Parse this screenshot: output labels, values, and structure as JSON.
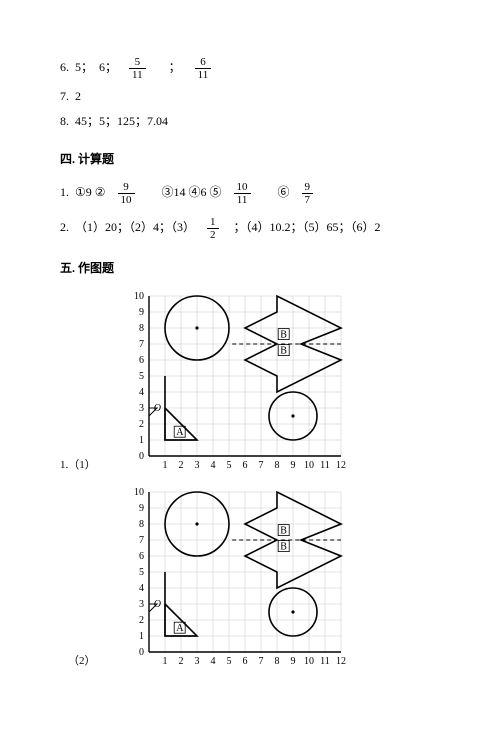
{
  "item6": {
    "prefix": "6.",
    "vals": [
      "5；",
      "6；"
    ],
    "frac1": {
      "n": "5",
      "d": "11"
    },
    "semi": "；",
    "frac2": {
      "n": "6",
      "d": "11"
    }
  },
  "item7": {
    "prefix": "7.",
    "val": "2"
  },
  "item8": {
    "prefix": "8.",
    "vals": "45；5；125；7.04"
  },
  "section4": "四. 计算题",
  "q1": {
    "prefix": "1.",
    "p1": "①9 ②",
    "frac1": {
      "n": "9",
      "d": "10"
    },
    "p2": "　③14 ④6 ⑤",
    "frac2": {
      "n": "10",
      "d": "11"
    },
    "p3": "　⑥",
    "frac3": {
      "n": "9",
      "d": "7"
    }
  },
  "q2": {
    "prefix": "2.",
    "p1": "（1）20；（2）4；（3）",
    "frac1": {
      "n": "1",
      "d": "2"
    },
    "p2": "；（4）10.2；（5）65；（6）2"
  },
  "section5": "五. 作图题",
  "fig1label": "1.（1）",
  "fig2label": "（2）",
  "chart": {
    "grid_color": "#cccccc",
    "axis_color": "#000000",
    "stroke_color": "#000000",
    "cell": 16,
    "cols": 12,
    "rows": 10,
    "x_ticks": [
      "1",
      "2",
      "3",
      "4",
      "5",
      "6",
      "7",
      "8",
      "9",
      "10",
      "11",
      "12"
    ],
    "y_ticks": [
      "0",
      "1",
      "2",
      "3",
      "4",
      "5",
      "6",
      "7",
      "8",
      "9",
      "10"
    ],
    "font_size": 10,
    "circle1": {
      "cx_units": 3,
      "cy_units": 8,
      "r_units": 2
    },
    "circle2": {
      "cx_units": 9,
      "cy_units": 2.5,
      "r_units": 1.5
    },
    "shapeA_units": [
      [
        1,
        5
      ],
      [
        1,
        1
      ],
      [
        3,
        1
      ],
      [
        1,
        3
      ]
    ],
    "shapeA_inner_units": [
      [
        1,
        3
      ],
      [
        1,
        1
      ],
      [
        3,
        1
      ]
    ],
    "label_A": "A",
    "label_A_pos": [
      1.7,
      1.3
    ],
    "label_O": "O",
    "label_O_pos": [
      0.3,
      2.8
    ],
    "star_units": [
      [
        6,
        8
      ],
      [
        8,
        9
      ],
      [
        8,
        10
      ],
      [
        12,
        8
      ],
      [
        9.5,
        7
      ],
      [
        12,
        6
      ],
      [
        8,
        4
      ],
      [
        8,
        5
      ],
      [
        6,
        6
      ],
      [
        8,
        7
      ]
    ],
    "label_B_top": "B",
    "label_B_bot": "B",
    "label_B_top_pos": [
      8.2,
      7.4
    ],
    "label_B_bot_pos": [
      8.2,
      6.4
    ],
    "dash_y": 7
  }
}
